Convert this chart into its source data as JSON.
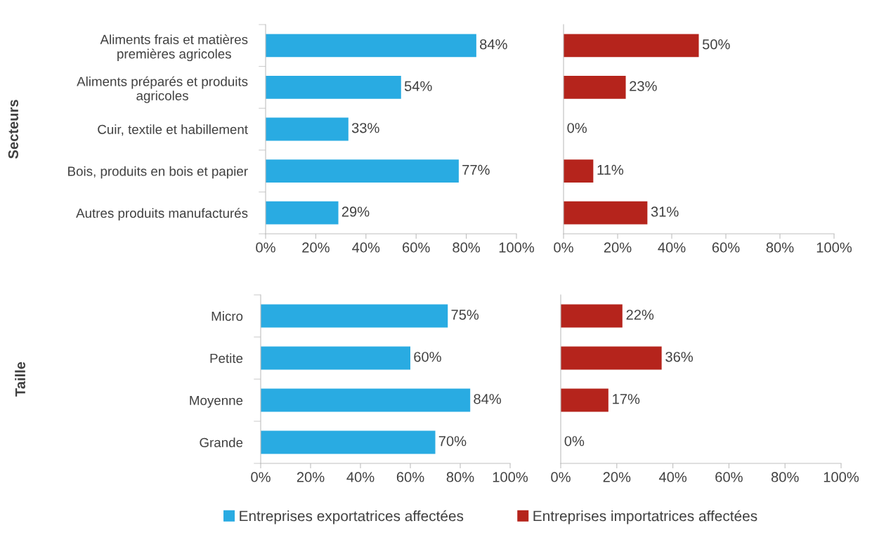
{
  "chart_data": [
    {
      "type": "bar",
      "orientation": "horizontal",
      "ylabel": "Secteurs",
      "categories": [
        "Aliments frais et matières\npremières agricoles",
        "Aliments préparés et produits\nagricoles",
        "Cuir, textile et habillement",
        "Bois, produits en bois et papier",
        "Autres produits manufacturés"
      ],
      "series": [
        {
          "color": "#29abe2",
          "values": [
            84,
            54,
            33,
            77,
            29
          ],
          "value_labels": [
            "84%",
            "54%",
            "33%",
            "77%",
            "29%"
          ]
        }
      ],
      "xlim": [
        0,
        100
      ],
      "xticks": [
        {
          "value": 0,
          "label": "0%"
        },
        {
          "value": 20,
          "label": "20%"
        },
        {
          "value": 40,
          "label": "40%"
        },
        {
          "value": 60,
          "label": "60%"
        },
        {
          "value": 80,
          "label": "80%"
        },
        {
          "value": 100,
          "label": "100%"
        }
      ],
      "grid": false,
      "legend": false
    },
    {
      "type": "bar",
      "orientation": "horizontal",
      "categories": [
        null,
        null,
        null,
        null,
        null
      ],
      "series": [
        {
          "color": "#b5241c",
          "values": [
            50,
            23,
            0,
            11,
            31
          ],
          "value_labels": [
            "50%",
            "23%",
            "0%",
            "11%",
            "31%"
          ]
        }
      ],
      "xlim": [
        0,
        100
      ],
      "xticks": [
        {
          "value": 0,
          "label": "0%"
        },
        {
          "value": 20,
          "label": "20%"
        },
        {
          "value": 40,
          "label": "40%"
        },
        {
          "value": 60,
          "label": "60%"
        },
        {
          "value": 80,
          "label": "80%"
        },
        {
          "value": 100,
          "label": "100%"
        }
      ],
      "tick_labels": "x",
      "grid": false,
      "legend": false
    },
    {
      "type": "bar",
      "orientation": "horizontal",
      "ylabel": "Taille",
      "categories": [
        "Micro",
        "Petite",
        "Moyenne",
        "Grande"
      ],
      "series": [
        {
          "name": "Entreprises exportatrices affectées",
          "color": "#29abe2",
          "values": [
            75,
            60,
            84,
            70
          ],
          "value_labels": [
            "75%",
            "60%",
            "84%",
            "70%"
          ]
        }
      ],
      "xlim": [
        0,
        100
      ],
      "xticks": [
        {
          "value": 0,
          "label": "0%"
        },
        {
          "value": 20,
          "label": "20%"
        },
        {
          "value": 40,
          "label": "40%"
        },
        {
          "value": 60,
          "label": "60%"
        },
        {
          "value": 80,
          "label": "80%"
        },
        {
          "value": 100,
          "label": "100%"
        }
      ],
      "grid": false,
      "legend": "bottom"
    },
    {
      "type": "bar",
      "orientation": "horizontal",
      "categories": [
        null,
        null,
        null,
        null
      ],
      "series": [
        {
          "name": "Entreprises importatrices affectées",
          "color": "#b5241c",
          "values": [
            22,
            36,
            17,
            0
          ],
          "value_labels": [
            "22%",
            "36%",
            "17%",
            "0%"
          ]
        }
      ],
      "xlim": [
        0,
        100
      ],
      "xticks": [
        {
          "value": 0,
          "label": "0%"
        },
        {
          "value": 20,
          "label": "20%"
        },
        {
          "value": 40,
          "label": "40%"
        },
        {
          "value": 60,
          "label": "60%"
        },
        {
          "value": 80,
          "label": "80%"
        },
        {
          "value": 100,
          "label": "100%"
        }
      ],
      "tick_labels": "x",
      "grid": false,
      "legend": "bottom"
    }
  ]
}
